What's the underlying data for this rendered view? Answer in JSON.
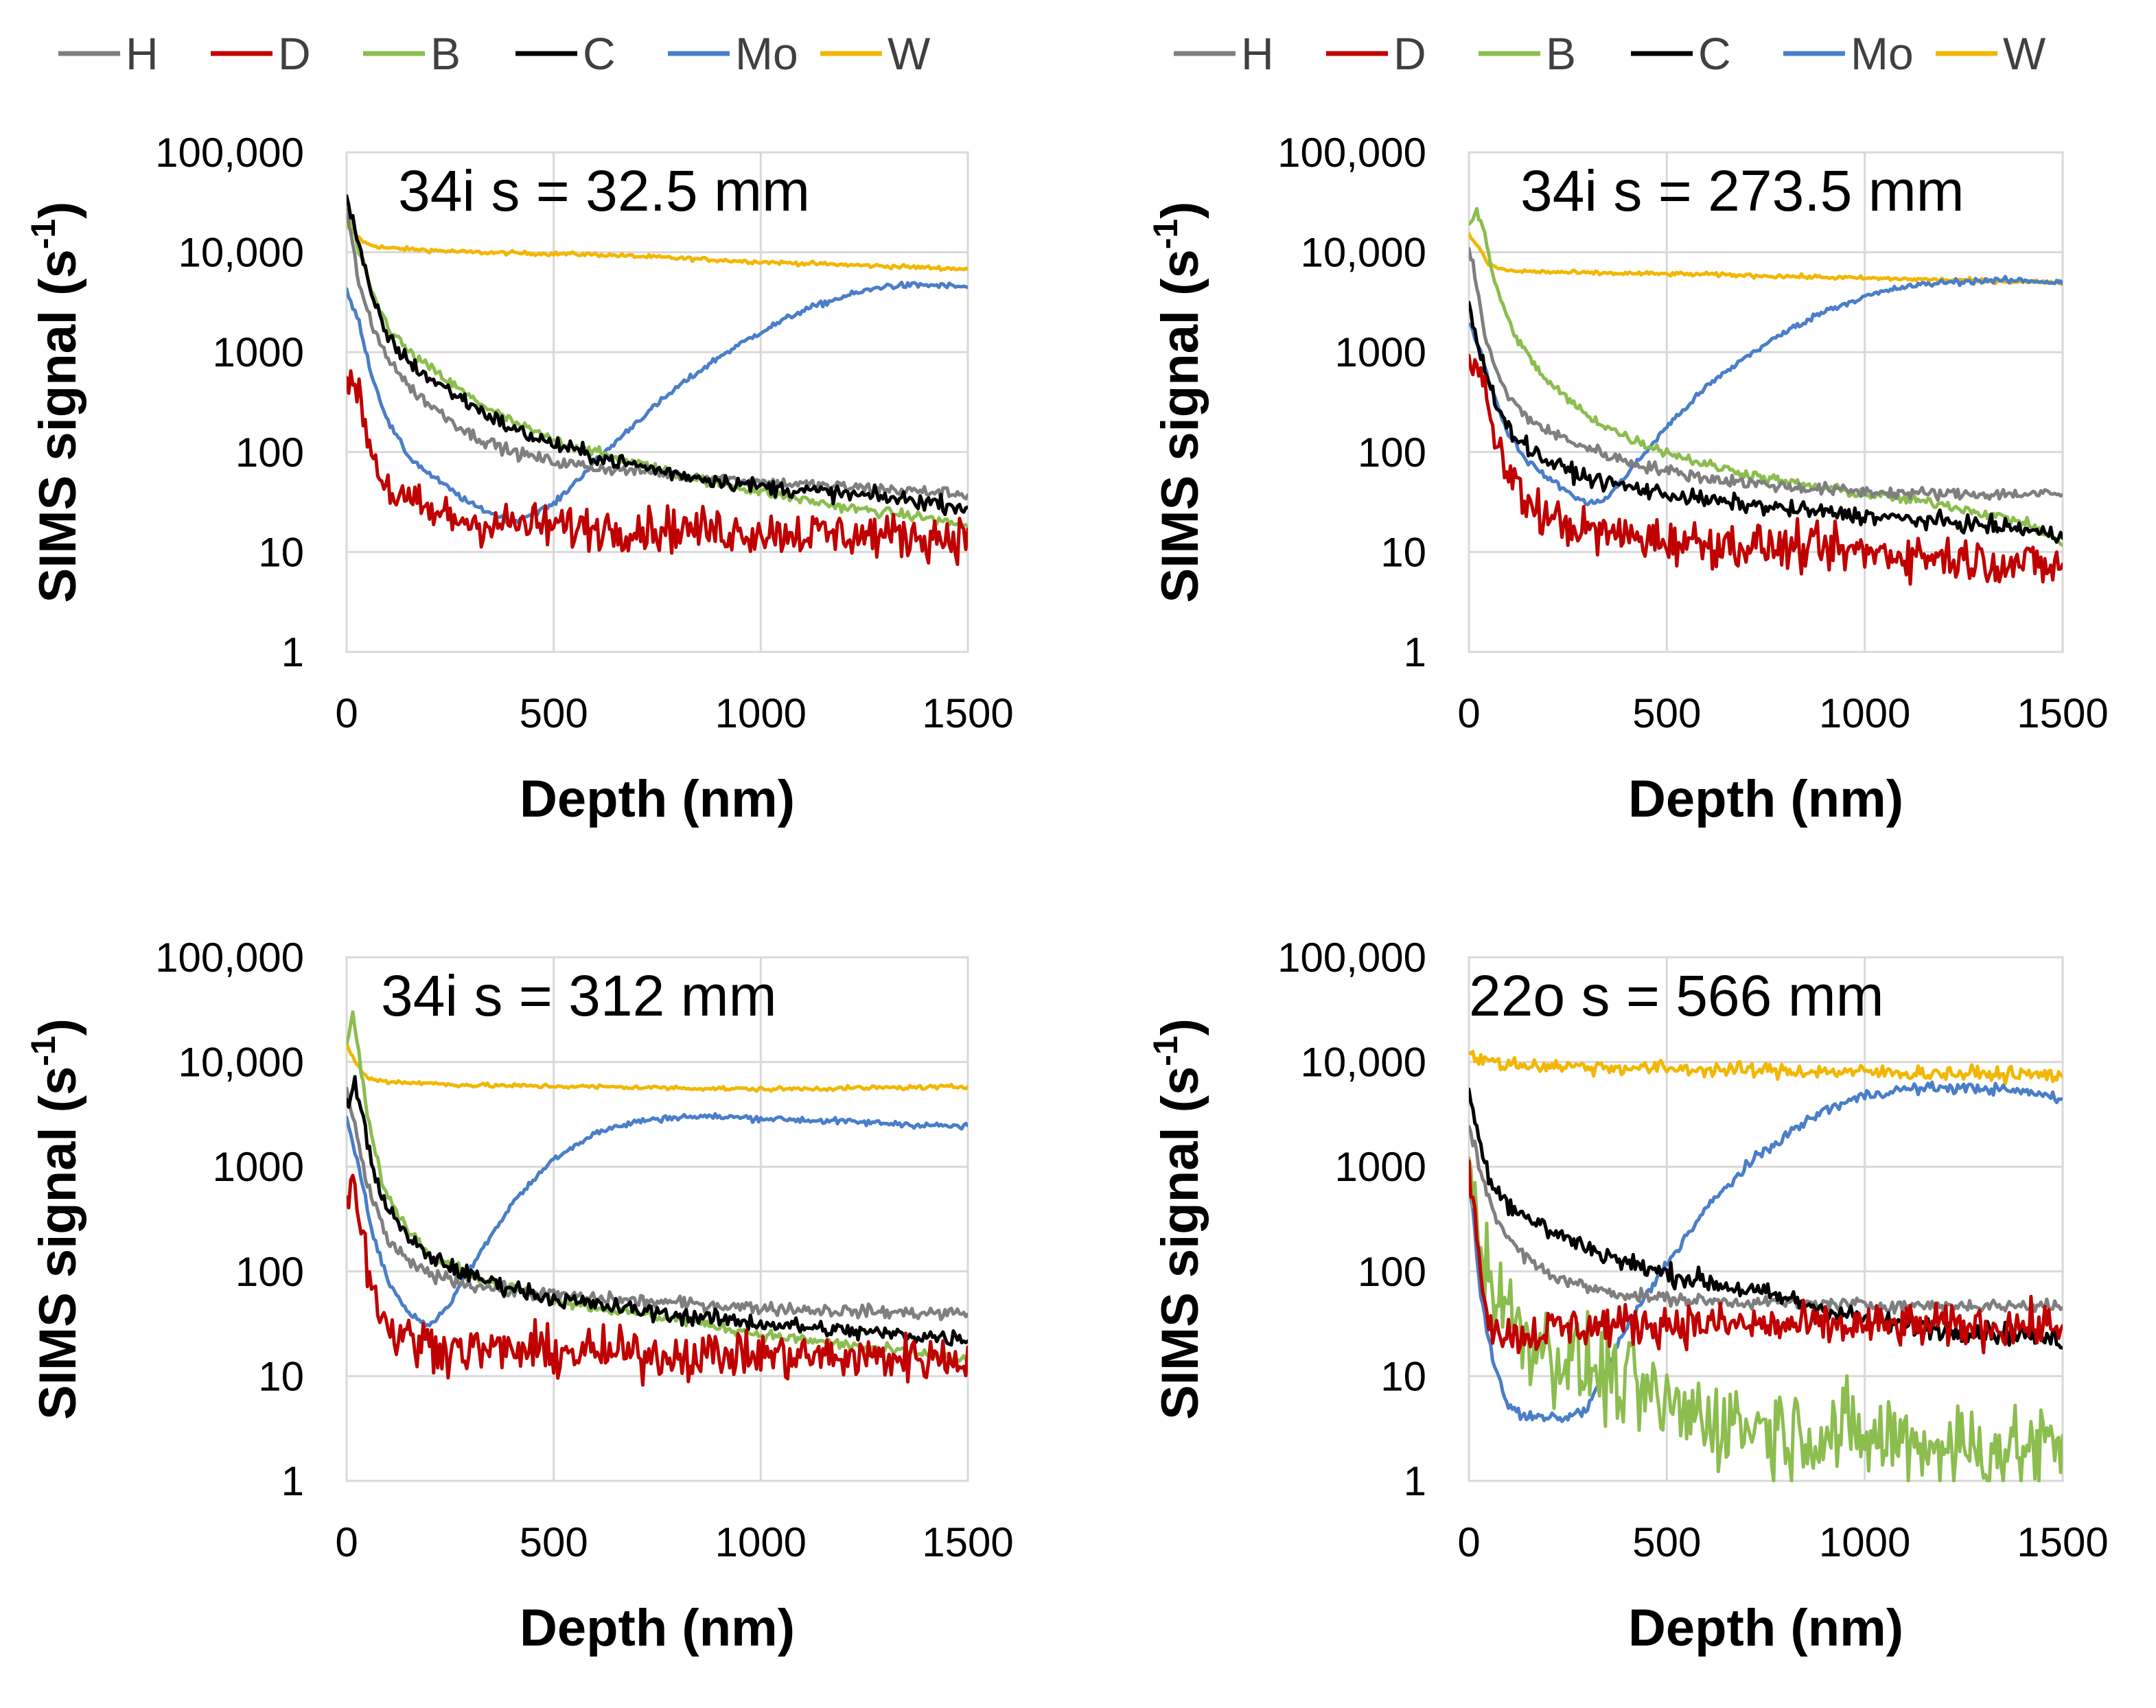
{
  "legends": {
    "entries": [
      {
        "name": "H",
        "color": "#7f7f7f"
      },
      {
        "name": "D",
        "color": "#c00000"
      },
      {
        "name": "B",
        "color": "#8cbd4f"
      },
      {
        "name": "C",
        "color": "#000000"
      },
      {
        "name": "Mo",
        "color": "#4a7ec8"
      },
      {
        "name": "W",
        "color": "#f2b705"
      }
    ]
  },
  "chart_data": [
    {
      "type": "line",
      "title": "34i s = 32.5 mm",
      "xlabel": "Depth (nm)",
      "ylabel": "SIMS signal (s",
      "ylabel_sup": "-1",
      "ylabel_end": ")",
      "y_scale": "log",
      "xlim": [
        0,
        1500
      ],
      "ylim": [
        1,
        100000
      ],
      "x_ticks": [
        0,
        500,
        1000,
        1500
      ],
      "x_tick_labels": [
        "0",
        "500",
        "1000",
        "1500"
      ],
      "y_ticks": [
        1,
        10,
        100,
        1000,
        10000,
        100000
      ],
      "y_tick_labels": [
        "1",
        "10",
        "100",
        "1000",
        "10,000",
        "100,000"
      ],
      "series": [
        {
          "name": "W",
          "color": "#f2b705",
          "noise": 0.02,
          "x": [
            0,
            20,
            50,
            100,
            300,
            600,
            1000,
            1500
          ],
          "y": [
            18000,
            15000,
            12000,
            11000,
            10000,
            9500,
            8000,
            6800
          ]
        },
        {
          "name": "Mo",
          "color": "#4a7ec8",
          "noise": 0.03,
          "x": [
            0,
            30,
            60,
            100,
            150,
            200,
            300,
            400,
            500,
            600,
            700,
            800,
            900,
            1000,
            1100,
            1200,
            1300,
            1400,
            1500
          ],
          "y": [
            4000,
            2000,
            600,
            200,
            90,
            60,
            30,
            20,
            30,
            80,
            200,
            450,
            900,
            1600,
            2600,
            3600,
            4600,
            4700,
            4500
          ]
        },
        {
          "name": "B",
          "color": "#8cbd4f",
          "noise": 0.05,
          "x": [
            0,
            30,
            60,
            100,
            150,
            200,
            300,
            400,
            500,
            600,
            800,
            1000,
            1200,
            1400,
            1500
          ],
          "y": [
            30000,
            10000,
            4000,
            1800,
            1000,
            700,
            350,
            200,
            130,
            100,
            60,
            40,
            28,
            22,
            18
          ]
        },
        {
          "name": "H",
          "color": "#7f7f7f",
          "noise": 0.06,
          "x": [
            0,
            30,
            60,
            100,
            150,
            200,
            300,
            400,
            500,
            600,
            800,
            1000,
            1200,
            1400,
            1500
          ],
          "y": [
            25000,
            5000,
            1800,
            900,
            450,
            300,
            150,
            100,
            80,
            70,
            60,
            50,
            45,
            40,
            38
          ]
        },
        {
          "name": "C",
          "color": "#000000",
          "noise": 0.08,
          "x": [
            0,
            30,
            60,
            100,
            150,
            200,
            300,
            400,
            500,
            600,
            800,
            1000,
            1200,
            1400,
            1500
          ],
          "y": [
            35000,
            12000,
            3500,
            1400,
            800,
            550,
            300,
            170,
            120,
            90,
            60,
            45,
            38,
            32,
            28
          ]
        },
        {
          "name": "D",
          "color": "#c00000",
          "noise": 0.22,
          "x": [
            0,
            15,
            30,
            50,
            80,
            120,
            200,
            300,
            500,
            800,
            1000,
            1200,
            1500
          ],
          "y": [
            300,
            600,
            400,
            150,
            60,
            35,
            25,
            20,
            18,
            17,
            16,
            15,
            14
          ]
        }
      ]
    },
    {
      "type": "line",
      "title": "34i s = 273.5 mm",
      "xlabel": "Depth (nm)",
      "ylabel": "SIMS signal (s",
      "ylabel_sup": "-1",
      "ylabel_end": ")",
      "y_scale": "log",
      "xlim": [
        0,
        1500
      ],
      "ylim": [
        1,
        100000
      ],
      "x_ticks": [
        0,
        500,
        1000,
        1500
      ],
      "x_tick_labels": [
        "0",
        "500",
        "1000",
        "1500"
      ],
      "y_ticks": [
        1,
        10,
        100,
        1000,
        10000,
        100000
      ],
      "y_tick_labels": [
        "1",
        "10",
        "100",
        "1000",
        "10,000",
        "100,000"
      ],
      "series": [
        {
          "name": "W",
          "color": "#f2b705",
          "noise": 0.02,
          "x": [
            0,
            20,
            50,
            100,
            300,
            600,
            1000,
            1500
          ],
          "y": [
            15000,
            12000,
            7500,
            6500,
            6200,
            6000,
            5500,
            5000
          ]
        },
        {
          "name": "Mo",
          "color": "#4a7ec8",
          "noise": 0.03,
          "x": [
            0,
            30,
            60,
            100,
            150,
            200,
            250,
            300,
            350,
            400,
            500,
            600,
            700,
            800,
            900,
            1000,
            1100,
            1200,
            1300,
            1400,
            1500
          ],
          "y": [
            2000,
            1000,
            400,
            150,
            80,
            55,
            40,
            30,
            35,
            60,
            180,
            450,
            900,
            1600,
            2600,
            3600,
            4500,
            5000,
            5200,
            5200,
            5000
          ]
        },
        {
          "name": "B",
          "color": "#8cbd4f",
          "noise": 0.05,
          "x": [
            0,
            20,
            40,
            60,
            100,
            150,
            200,
            300,
            400,
            500,
            600,
            800,
            1000,
            1200,
            1400,
            1500
          ],
          "y": [
            20000,
            25000,
            15000,
            6000,
            2000,
            900,
            500,
            230,
            140,
            100,
            75,
            50,
            38,
            30,
            20,
            12
          ]
        },
        {
          "name": "H",
          "color": "#7f7f7f",
          "noise": 0.06,
          "x": [
            0,
            20,
            40,
            60,
            100,
            150,
            200,
            300,
            400,
            500,
            600,
            800,
            1000,
            1200,
            1400,
            1500
          ],
          "y": [
            10000,
            5000,
            1500,
            800,
            350,
            220,
            160,
            110,
            80,
            65,
            55,
            45,
            40,
            38,
            38,
            38
          ]
        },
        {
          "name": "C",
          "color": "#000000",
          "noise": 0.08,
          "x": [
            0,
            20,
            40,
            60,
            100,
            150,
            200,
            300,
            400,
            500,
            600,
            800,
            1000,
            1200,
            1400,
            1500
          ],
          "y": [
            3000,
            1200,
            700,
            400,
            170,
            110,
            80,
            55,
            45,
            38,
            33,
            27,
            23,
            20,
            17,
            14
          ]
        },
        {
          "name": "D",
          "color": "#c00000",
          "noise": 0.22,
          "x": [
            0,
            20,
            40,
            60,
            100,
            150,
            200,
            300,
            500,
            800,
            1000,
            1200,
            1500
          ],
          "y": [
            1200,
            900,
            400,
            150,
            60,
            30,
            22,
            16,
            13,
            11,
            10,
            9,
            7
          ]
        }
      ]
    },
    {
      "type": "line",
      "title": "34i s = 312 mm",
      "xlabel": "Depth (nm)",
      "ylabel": "SIMS signal (s",
      "ylabel_sup": "-1",
      "ylabel_end": ")",
      "y_scale": "log",
      "xlim": [
        0,
        1500
      ],
      "ylim": [
        1,
        100000
      ],
      "x_ticks": [
        0,
        500,
        1000,
        1500
      ],
      "x_tick_labels": [
        "0",
        "500",
        "1000",
        "1500"
      ],
      "y_ticks": [
        1,
        10,
        100,
        1000,
        10000,
        100000
      ],
      "y_tick_labels": [
        "1",
        "10",
        "100",
        "1000",
        "10,000",
        "100,000"
      ],
      "series": [
        {
          "name": "W",
          "color": "#f2b705",
          "noise": 0.02,
          "x": [
            0,
            20,
            50,
            100,
            300,
            600,
            1000,
            1500
          ],
          "y": [
            15000,
            10000,
            7000,
            6500,
            6000,
            5800,
            5500,
            5800
          ]
        },
        {
          "name": "Mo",
          "color": "#4a7ec8",
          "noise": 0.03,
          "x": [
            0,
            30,
            60,
            100,
            150,
            200,
            250,
            300,
            400,
            500,
            600,
            700,
            800,
            900,
            1000,
            1100,
            1200,
            1300,
            1400,
            1500
          ],
          "y": [
            3000,
            1000,
            250,
            80,
            40,
            30,
            50,
            110,
            450,
            1200,
            2100,
            2700,
            3000,
            3000,
            2900,
            2800,
            2700,
            2600,
            2500,
            2400
          ]
        },
        {
          "name": "B",
          "color": "#8cbd4f",
          "noise": 0.05,
          "x": [
            0,
            15,
            30,
            50,
            80,
            100,
            150,
            200,
            300,
            400,
            500,
            600,
            800,
            1000,
            1200,
            1400,
            1500
          ],
          "y": [
            15000,
            28000,
            12000,
            3000,
            900,
            500,
            250,
            150,
            90,
            70,
            55,
            45,
            35,
            25,
            20,
            16,
            14
          ]
        },
        {
          "name": "H",
          "color": "#7f7f7f",
          "noise": 0.06,
          "x": [
            0,
            20,
            40,
            60,
            100,
            150,
            200,
            300,
            400,
            500,
            600,
            800,
            1000,
            1200,
            1400,
            1500
          ],
          "y": [
            5000,
            2500,
            1000,
            500,
            200,
            120,
            95,
            75,
            65,
            60,
            55,
            50,
            45,
            42,
            40,
            40
          ]
        },
        {
          "name": "C",
          "color": "#000000",
          "noise": 0.08,
          "x": [
            0,
            20,
            40,
            60,
            100,
            150,
            200,
            300,
            400,
            500,
            600,
            800,
            1000,
            1200,
            1400,
            1500
          ],
          "y": [
            4000,
            6000,
            3000,
            1000,
            400,
            200,
            140,
            90,
            70,
            55,
            48,
            38,
            32,
            27,
            24,
            23
          ]
        },
        {
          "name": "D",
          "color": "#c00000",
          "noise": 0.22,
          "x": [
            0,
            15,
            30,
            50,
            80,
            120,
            200,
            300,
            500,
            800,
            1000,
            1200,
            1500
          ],
          "y": [
            500,
            800,
            400,
            120,
            40,
            25,
            20,
            18,
            17,
            16,
            16,
            15,
            15
          ]
        }
      ]
    },
    {
      "type": "line",
      "title": "22o s = 566 mm",
      "xlabel": "Depth (nm)",
      "ylabel": "SIMS signal (s",
      "ylabel_sup": "-1",
      "ylabel_end": ")",
      "y_scale": "log",
      "xlim": [
        0,
        1500
      ],
      "ylim": [
        1,
        100000
      ],
      "x_ticks": [
        0,
        500,
        1000,
        1500
      ],
      "x_tick_labels": [
        "0",
        "500",
        "1000",
        "1500"
      ],
      "y_ticks": [
        1,
        10,
        100,
        1000,
        10000,
        100000
      ],
      "y_tick_labels": [
        "1",
        "10",
        "100",
        "1000",
        "10,000",
        "100,000"
      ],
      "series": [
        {
          "name": "W",
          "color": "#f2b705",
          "noise": 0.07,
          "x": [
            0,
            20,
            50,
            100,
            300,
            600,
            1000,
            1500
          ],
          "y": [
            12000,
            11000,
            10000,
            9500,
            9000,
            8500,
            8000,
            7500
          ]
        },
        {
          "name": "Mo",
          "color": "#4a7ec8",
          "noise": 0.05,
          "x": [
            0,
            30,
            60,
            100,
            150,
            200,
            250,
            300,
            350,
            400,
            500,
            600,
            700,
            800,
            900,
            1000,
            1100,
            1200,
            1300,
            1400,
            1500
          ],
          "y": [
            800,
            60,
            15,
            5,
            4,
            4,
            4,
            5,
            12,
            30,
            120,
            400,
            1000,
            2000,
            3500,
            4800,
            5500,
            5700,
            5600,
            5200,
            4500
          ]
        },
        {
          "name": "B",
          "color": "#8cbd4f",
          "noise": 0.45,
          "x": [
            0,
            30,
            60,
            100,
            150,
            200,
            300,
            400,
            500,
            600,
            700,
            800,
            900,
            1000,
            1100,
            1200,
            1300,
            1400,
            1500
          ],
          "y": [
            800,
            200,
            80,
            40,
            25,
            18,
            12,
            8,
            5,
            4,
            3.5,
            3,
            3,
            2.5,
            2.5,
            2.2,
            2,
            2,
            2
          ]
        },
        {
          "name": "H",
          "color": "#7f7f7f",
          "noise": 0.06,
          "x": [
            0,
            30,
            60,
            100,
            150,
            200,
            300,
            400,
            500,
            600,
            800,
            1000,
            1200,
            1400,
            1500
          ],
          "y": [
            2500,
            900,
            400,
            200,
            130,
            95,
            70,
            60,
            55,
            52,
            50,
            48,
            47,
            47,
            47
          ]
        },
        {
          "name": "C",
          "color": "#000000",
          "noise": 0.1,
          "x": [
            0,
            30,
            60,
            100,
            150,
            200,
            300,
            400,
            500,
            600,
            800,
            1000,
            1200,
            1400,
            1500
          ],
          "y": [
            5000,
            1500,
            700,
            450,
            320,
            250,
            170,
            120,
            95,
            80,
            55,
            35,
            28,
            25,
            22
          ]
        },
        {
          "name": "D",
          "color": "#c00000",
          "noise": 0.2,
          "x": [
            0,
            20,
            40,
            60,
            100,
            150,
            200,
            300,
            500,
            800,
            1000,
            1200,
            1500
          ],
          "y": [
            1200,
            200,
            60,
            30,
            25,
            25,
            28,
            30,
            32,
            30,
            30,
            30,
            30
          ]
        }
      ]
    }
  ]
}
